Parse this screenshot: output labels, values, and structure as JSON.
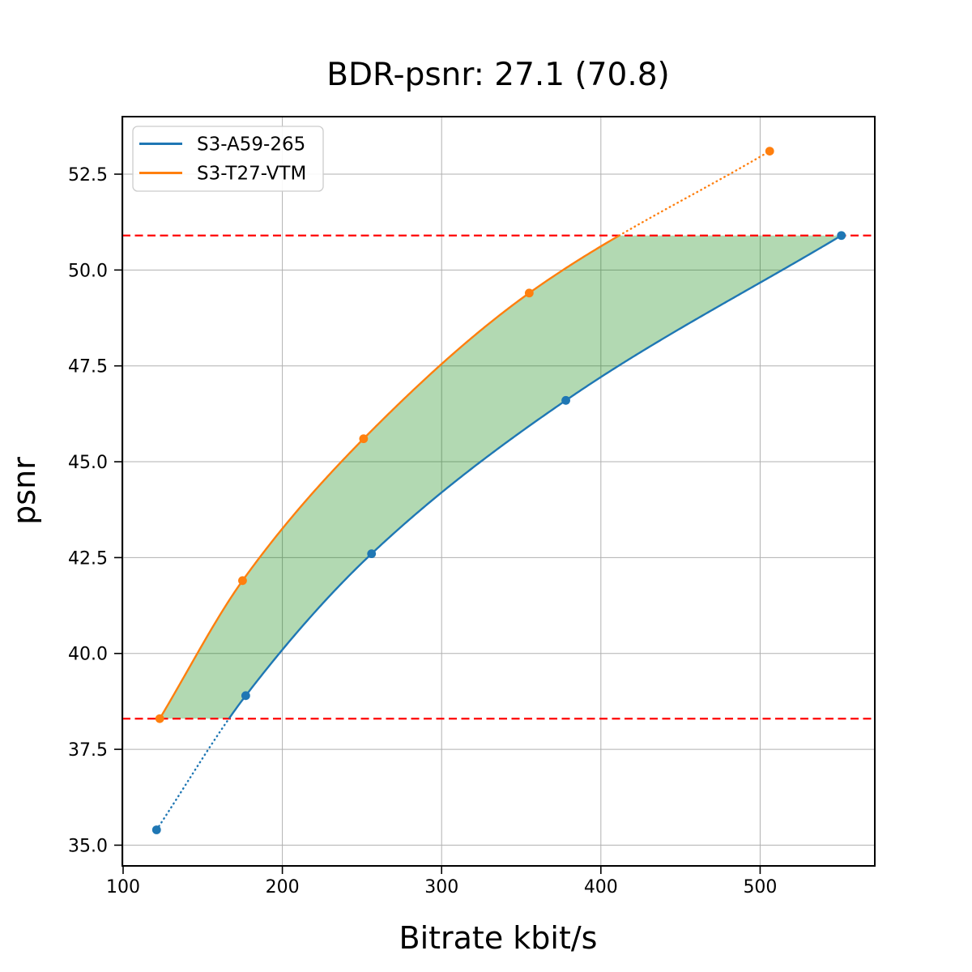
{
  "chart_data": {
    "type": "line",
    "title": "BDR-psnr: 27.1 (70.8)",
    "xlabel": "Bitrate kbit/s",
    "ylabel": "psnr",
    "xlim": [
      99.5,
      572.0
    ],
    "ylim": [
      34.46,
      54.0
    ],
    "xticks": [
      100,
      200,
      300,
      400,
      500
    ],
    "yticks": [
      35.0,
      37.5,
      40.0,
      42.5,
      45.0,
      47.5,
      50.0,
      52.5
    ],
    "grid": true,
    "legend": {
      "position": "upper left",
      "entries": [
        "S3-A59-265",
        "S3-T27-VTM"
      ]
    },
    "series": [
      {
        "name": "S3-A59-265",
        "color": "#1f77b4",
        "marker": "circle",
        "x": [
          121,
          177,
          256,
          378,
          551
        ],
        "y": [
          35.4,
          38.9,
          42.6,
          46.6,
          50.9
        ],
        "note": "dotted below overlap interval, solid inside"
      },
      {
        "name": "S3-T27-VTM",
        "color": "#ff7f0e",
        "marker": "circle",
        "x": [
          123,
          175,
          251,
          355,
          506
        ],
        "y": [
          38.3,
          41.9,
          45.6,
          49.4,
          53.1
        ],
        "note": "solid inside overlap interval, dotted above"
      }
    ],
    "overlap_lines": {
      "lower": 38.3,
      "upper": 50.9,
      "color": "#ff0000",
      "style": "dashed"
    },
    "shaded_region": {
      "color": "#008000",
      "opacity": 0.3,
      "between": "area between the two curves clipped to the overlap psnr interval"
    },
    "styles": {
      "grid_color": "#b0b0b0",
      "spine_color": "#000000",
      "background": "#ffffff"
    }
  }
}
